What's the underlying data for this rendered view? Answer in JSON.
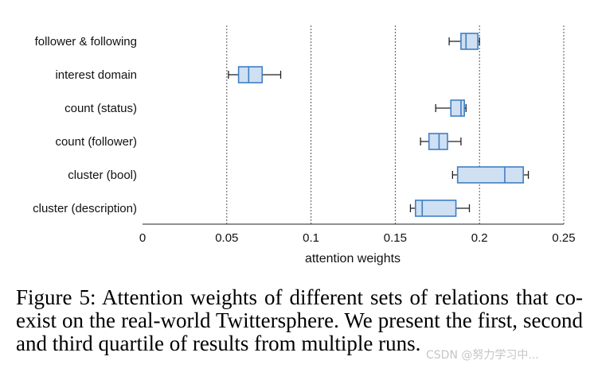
{
  "chart_data": {
    "type": "box",
    "orientation": "horizontal",
    "xlabel": "attention weights",
    "xlim": [
      0,
      0.25
    ],
    "xticks": [
      0,
      0.05,
      0.1,
      0.15,
      0.2,
      0.25
    ],
    "xtick_labels": [
      "0",
      "0.05",
      "0.1",
      "0.15",
      "0.2",
      "0.25"
    ],
    "grid": "vertical dotted",
    "categories": [
      {
        "label": "follower & following",
        "whisker_low": 0.182,
        "q1": 0.189,
        "median": 0.192,
        "q3": 0.199,
        "whisker_high": 0.2
      },
      {
        "label": "interest domain",
        "whisker_low": 0.051,
        "q1": 0.057,
        "median": 0.063,
        "q3": 0.071,
        "whisker_high": 0.082
      },
      {
        "label": "count (status)",
        "whisker_low": 0.174,
        "q1": 0.183,
        "median": 0.189,
        "q3": 0.191,
        "whisker_high": 0.192
      },
      {
        "label": "count (follower)",
        "whisker_low": 0.165,
        "q1": 0.17,
        "median": 0.176,
        "q3": 0.181,
        "whisker_high": 0.189
      },
      {
        "label": "cluster (bool)",
        "whisker_low": 0.184,
        "q1": 0.187,
        "median": 0.215,
        "q3": 0.226,
        "whisker_high": 0.229
      },
      {
        "label": "cluster (description)",
        "whisker_low": 0.159,
        "q1": 0.162,
        "median": 0.166,
        "q3": 0.186,
        "whisker_high": 0.194
      }
    ],
    "colors": {
      "box_fill": "#cfe0f3",
      "box_stroke": "#3f7fc4",
      "whisker": "#222222",
      "grid": "#555555"
    }
  },
  "caption": "Figure 5: Attention weights of different sets of relations that co-exist on the real-world Twittersphere. We present the first, second and third quartile of results from multiple runs.",
  "watermark": "CSDN @努力学习中..."
}
